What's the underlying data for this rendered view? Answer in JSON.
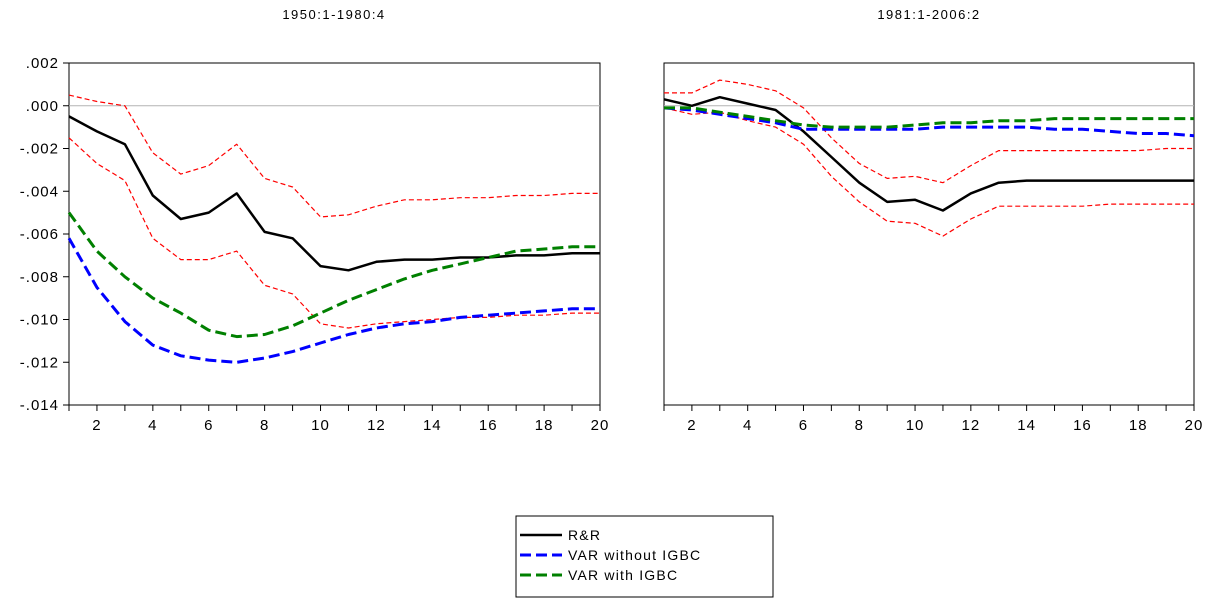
{
  "chart_data": [
    {
      "type": "line",
      "title": "1950:1-1980:4",
      "xlabel": "",
      "ylabel": "",
      "x": [
        1,
        2,
        3,
        4,
        5,
        6,
        7,
        8,
        9,
        10,
        11,
        12,
        13,
        14,
        15,
        16,
        17,
        18,
        19,
        20
      ],
      "xticks": [
        2,
        4,
        6,
        8,
        10,
        12,
        14,
        16,
        18,
        20
      ],
      "xlim": [
        1,
        20
      ],
      "ylim": [
        -0.014,
        0.002
      ],
      "yticks": [
        0.002,
        0.0,
        -0.002,
        -0.004,
        -0.006,
        -0.008,
        -0.01,
        -0.012,
        -0.014
      ],
      "ytick_labels": [
        ".002",
        ".000",
        "-.002",
        "-.004",
        "-.006",
        "-.008",
        "-.010",
        "-.012",
        "-.014"
      ],
      "zero_line": true,
      "grid": false,
      "series": [
        {
          "name": "R&R",
          "color": "#000000",
          "style": "solid",
          "values": [
            -0.0005,
            -0.0012,
            -0.0018,
            -0.0042,
            -0.0053,
            -0.005,
            -0.0041,
            -0.0059,
            -0.0062,
            -0.0075,
            -0.0077,
            -0.0073,
            -0.0072,
            -0.0072,
            -0.0071,
            -0.0071,
            -0.007,
            -0.007,
            -0.0069,
            -0.0069
          ]
        },
        {
          "name": "VAR without IGBC",
          "color": "#0000ff",
          "style": "dashed",
          "values": [
            -0.0062,
            -0.0085,
            -0.0101,
            -0.0112,
            -0.0117,
            -0.0119,
            -0.012,
            -0.0118,
            -0.0115,
            -0.0111,
            -0.0107,
            -0.0104,
            -0.0102,
            -0.0101,
            -0.0099,
            -0.0098,
            -0.0097,
            -0.0096,
            -0.0095,
            -0.0095
          ]
        },
        {
          "name": "VAR with IGBC",
          "color": "#008000",
          "style": "dashed",
          "values": [
            -0.005,
            -0.0068,
            -0.008,
            -0.009,
            -0.0097,
            -0.0105,
            -0.0108,
            -0.0107,
            -0.0103,
            -0.0097,
            -0.0091,
            -0.0086,
            -0.0081,
            -0.0077,
            -0.0074,
            -0.0071,
            -0.0068,
            -0.0067,
            -0.0066,
            -0.0066
          ]
        },
        {
          "color": "#ff0000",
          "style": "thin-dashed",
          "values": [
            0.0005,
            0.0002,
            0.0,
            -0.0022,
            -0.0032,
            -0.0028,
            -0.0018,
            -0.0034,
            -0.0038,
            -0.0052,
            -0.0051,
            -0.0047,
            -0.0044,
            -0.0044,
            -0.0043,
            -0.0043,
            -0.0042,
            -0.0042,
            -0.0041,
            -0.0041
          ]
        },
        {
          "color": "#ff0000",
          "style": "thin-dashed",
          "values": [
            -0.0015,
            -0.0027,
            -0.0035,
            -0.0062,
            -0.0072,
            -0.0072,
            -0.0068,
            -0.0084,
            -0.0088,
            -0.0102,
            -0.0104,
            -0.0102,
            -0.0101,
            -0.01,
            -0.0099,
            -0.0099,
            -0.0098,
            -0.0098,
            -0.0097,
            -0.0097
          ]
        }
      ]
    },
    {
      "type": "line",
      "title": "1981:1-2006:2",
      "xlabel": "",
      "ylabel": "",
      "x": [
        1,
        2,
        3,
        4,
        5,
        6,
        7,
        8,
        9,
        10,
        11,
        12,
        13,
        14,
        15,
        16,
        17,
        18,
        19,
        20
      ],
      "xticks": [
        2,
        4,
        6,
        8,
        10,
        12,
        14,
        16,
        18,
        20
      ],
      "xlim": [
        1,
        20
      ],
      "ylim": [
        -0.014,
        0.002
      ],
      "zero_line": true,
      "grid": false,
      "series": [
        {
          "name": "R&R",
          "color": "#000000",
          "style": "solid",
          "values": [
            0.0003,
            0.0,
            0.0004,
            0.0001,
            -0.0002,
            -0.0012,
            -0.0024,
            -0.0036,
            -0.0045,
            -0.0044,
            -0.0049,
            -0.0041,
            -0.0036,
            -0.0035,
            -0.0035,
            -0.0035,
            -0.0035,
            -0.0035,
            -0.0035,
            -0.0035
          ]
        },
        {
          "name": "VAR without IGBC",
          "color": "#0000ff",
          "style": "dashed",
          "values": [
            -0.0001,
            -0.0002,
            -0.0004,
            -0.0006,
            -0.0008,
            -0.0011,
            -0.0011,
            -0.0011,
            -0.0011,
            -0.0011,
            -0.001,
            -0.001,
            -0.001,
            -0.001,
            -0.0011,
            -0.0011,
            -0.0012,
            -0.0013,
            -0.0013,
            -0.0014
          ]
        },
        {
          "name": "VAR with IGBC",
          "color": "#008000",
          "style": "dashed",
          "values": [
            -0.0001,
            -0.0001,
            -0.0003,
            -0.0005,
            -0.0007,
            -0.0009,
            -0.001,
            -0.001,
            -0.001,
            -0.0009,
            -0.0008,
            -0.0008,
            -0.0007,
            -0.0007,
            -0.0006,
            -0.0006,
            -0.0006,
            -0.0006,
            -0.0006,
            -0.0006
          ]
        },
        {
          "color": "#ff0000",
          "style": "thin-dashed",
          "values": [
            0.0006,
            0.0006,
            0.0012,
            0.001,
            0.0007,
            -0.0001,
            -0.0015,
            -0.0027,
            -0.0034,
            -0.0033,
            -0.0036,
            -0.0028,
            -0.0021,
            -0.0021,
            -0.0021,
            -0.0021,
            -0.0021,
            -0.0021,
            -0.002,
            -0.002
          ]
        },
        {
          "color": "#ff0000",
          "style": "thin-dashed",
          "values": [
            -0.0001,
            -0.0004,
            -0.0003,
            -0.0007,
            -0.001,
            -0.0018,
            -0.0033,
            -0.0045,
            -0.0054,
            -0.0055,
            -0.0061,
            -0.0053,
            -0.0047,
            -0.0047,
            -0.0047,
            -0.0047,
            -0.0046,
            -0.0046,
            -0.0046,
            -0.0046
          ]
        }
      ]
    }
  ],
  "legend": {
    "placement": "bottom-center",
    "entries": [
      {
        "label": "R&R",
        "color": "#000000",
        "style": "solid"
      },
      {
        "label": "VAR without IGBC",
        "color": "#0000ff",
        "style": "dashed"
      },
      {
        "label": "VAR with IGBC",
        "color": "#008000",
        "style": "dashed"
      }
    ]
  }
}
